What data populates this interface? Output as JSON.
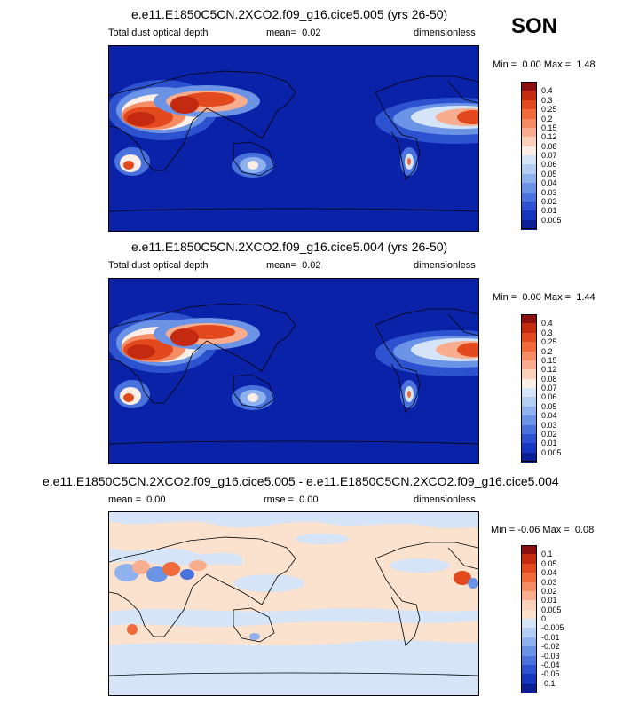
{
  "season": "SON",
  "panels": [
    {
      "title": "e.e11.E1850C5CN.2XCO2.f09_g16.cice5.005 (yrs 26-50)",
      "left_label": "Total dust optical depth",
      "mean_label": "mean=",
      "mean_value": "0.02",
      "units": "dimensionless",
      "min_label": "Min =",
      "min_value": "0.00",
      "max_label": "Max =",
      "max_value": "1.48",
      "background_color": "#0a22a8"
    },
    {
      "title": "e.e11.E1850C5CN.2XCO2.f09_g16.cice5.004 (yrs 26-50)",
      "left_label": "Total dust optical depth",
      "mean_label": "mean=",
      "mean_value": "0.02",
      "units": "dimensionless",
      "min_label": "Min =",
      "min_value": "0.00",
      "max_label": "Max =",
      "max_value": "1.44",
      "background_color": "#0a22a8"
    },
    {
      "title": "e.e11.E1850C5CN.2XCO2.f09_g16.cice5.005 - e.e11.E1850C5CN.2XCO2.f09_g16.cice5.004",
      "left_label": "mean =",
      "mean_label": "rmse =",
      "mean_value": "0.00",
      "left_value": "0.00",
      "units": "dimensionless",
      "min_label": "Min =",
      "min_value": "-0.06",
      "max_label": "Max =",
      "max_value": "0.08",
      "background_color": "#fbe2cf"
    }
  ],
  "colorbar_abs": {
    "labels": [
      "0.4",
      "0.3",
      "0.25",
      "0.2",
      "0.15",
      "0.12",
      "0.08",
      "0.07",
      "0.06",
      "0.05",
      "0.04",
      "0.03",
      "0.02",
      "0.01",
      "0.005"
    ],
    "colors": [
      "#8a0f0f",
      "#c42a10",
      "#e24a1e",
      "#f06a3c",
      "#f58c64",
      "#f8ad8e",
      "#fbd1bb",
      "#fbeee6",
      "#d6e4f7",
      "#b4cdf3",
      "#8fb1ee",
      "#6b93e6",
      "#4a72dc",
      "#2d52cf",
      "#1537be",
      "#0b1f94"
    ]
  },
  "colorbar_diff": {
    "labels": [
      "0.1",
      "0.05",
      "0.04",
      "0.03",
      "0.02",
      "0.01",
      "0.005",
      "0",
      "-0.005",
      "-0.01",
      "-0.02",
      "-0.03",
      "-0.04",
      "-0.05",
      "-0.1"
    ],
    "colors": [
      "#8a0f0f",
      "#c42a10",
      "#e24a1e",
      "#f06a3c",
      "#f58c64",
      "#f8ad8e",
      "#fbd1bb",
      "#fbe2cf",
      "#d6e4f7",
      "#b4cdf3",
      "#8fb1ee",
      "#6b93e6",
      "#4a72dc",
      "#2d52cf",
      "#1537be",
      "#0b1f94"
    ]
  }
}
